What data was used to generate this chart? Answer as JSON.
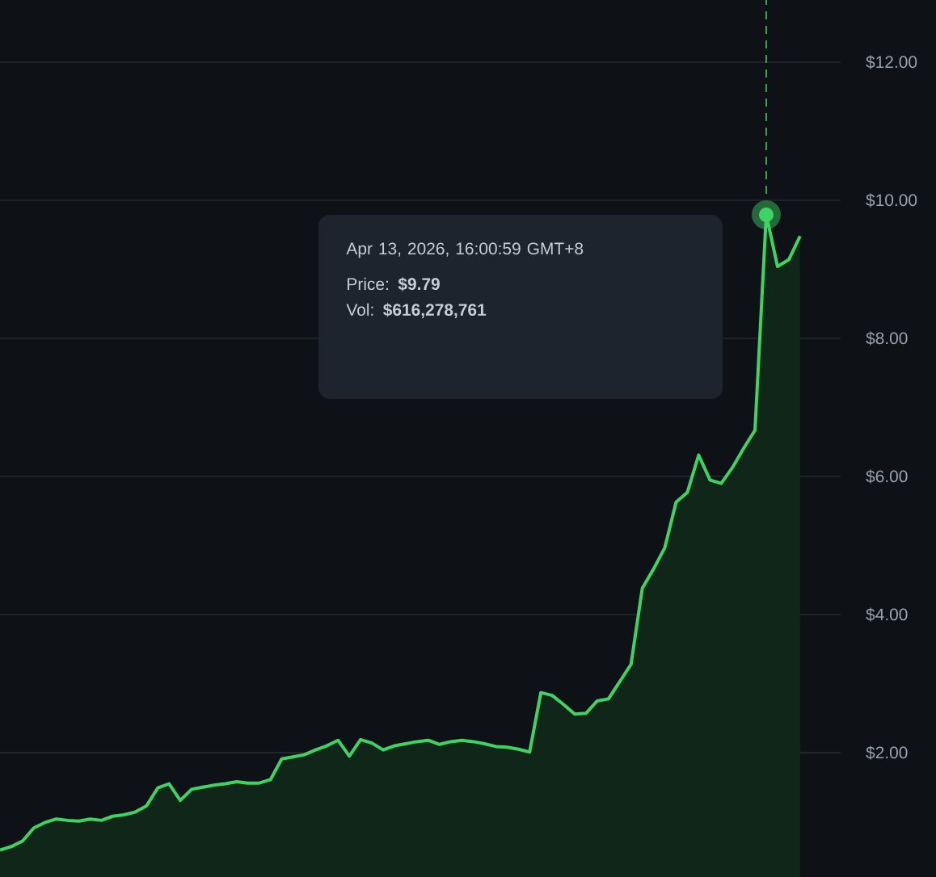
{
  "chart_data": {
    "type": "area",
    "categories": [
      null,
      null,
      null,
      null,
      null,
      null,
      null,
      null,
      null,
      null,
      null,
      null,
      null,
      null,
      null,
      null,
      null,
      null,
      null,
      null,
      null,
      null,
      null,
      null,
      null,
      null,
      null,
      null,
      null,
      null,
      null,
      null,
      null,
      null,
      null,
      null,
      null,
      null,
      null,
      null,
      null,
      null,
      null,
      null,
      null,
      null,
      null,
      null,
      null,
      null,
      null,
      null,
      null,
      null,
      null,
      null,
      null,
      null,
      null,
      null,
      null,
      null,
      null,
      null,
      null,
      null,
      null,
      null,
      null,
      null,
      null,
      null
    ],
    "values": [
      0.59,
      0.64,
      0.72,
      0.91,
      0.99,
      1.04,
      1.02,
      1.01,
      1.04,
      1.02,
      1.08,
      1.1,
      1.14,
      1.23,
      1.49,
      1.55,
      1.31,
      1.47,
      1.5,
      1.53,
      1.55,
      1.58,
      1.56,
      1.56,
      1.61,
      1.91,
      1.94,
      1.97,
      2.04,
      2.1,
      2.18,
      1.95,
      2.19,
      2.14,
      2.04,
      2.1,
      2.13,
      2.16,
      2.18,
      2.12,
      2.16,
      2.18,
      2.16,
      2.13,
      2.09,
      2.08,
      2.05,
      2.01,
      2.87,
      2.83,
      2.7,
      2.56,
      2.57,
      2.75,
      2.78,
      3.03,
      3.28,
      4.38,
      4.66,
      4.97,
      5.63,
      5.77,
      6.31,
      5.95,
      5.9,
      6.13,
      6.41,
      6.67,
      9.79,
      9.04,
      9.14,
      9.48
    ],
    "color": "#3dd463",
    "ylim": [
      0.2,
      12.9
    ],
    "yticks": [
      {
        "value": 2,
        "label": "$2.00"
      },
      {
        "value": 4,
        "label": "$4.00"
      },
      {
        "value": 6,
        "label": "$6.00"
      },
      {
        "value": 8,
        "label": "$8.00"
      },
      {
        "value": 10,
        "label": "$10.00"
      },
      {
        "value": 12,
        "label": "$12.00"
      }
    ],
    "grid": "y",
    "tick_labels": "y",
    "annotations": [
      "Apr 13, 2026, 16:00:59 GMT+8",
      "Price: **$9.79**",
      "Vol: **$616,278,761**"
    ]
  }
}
